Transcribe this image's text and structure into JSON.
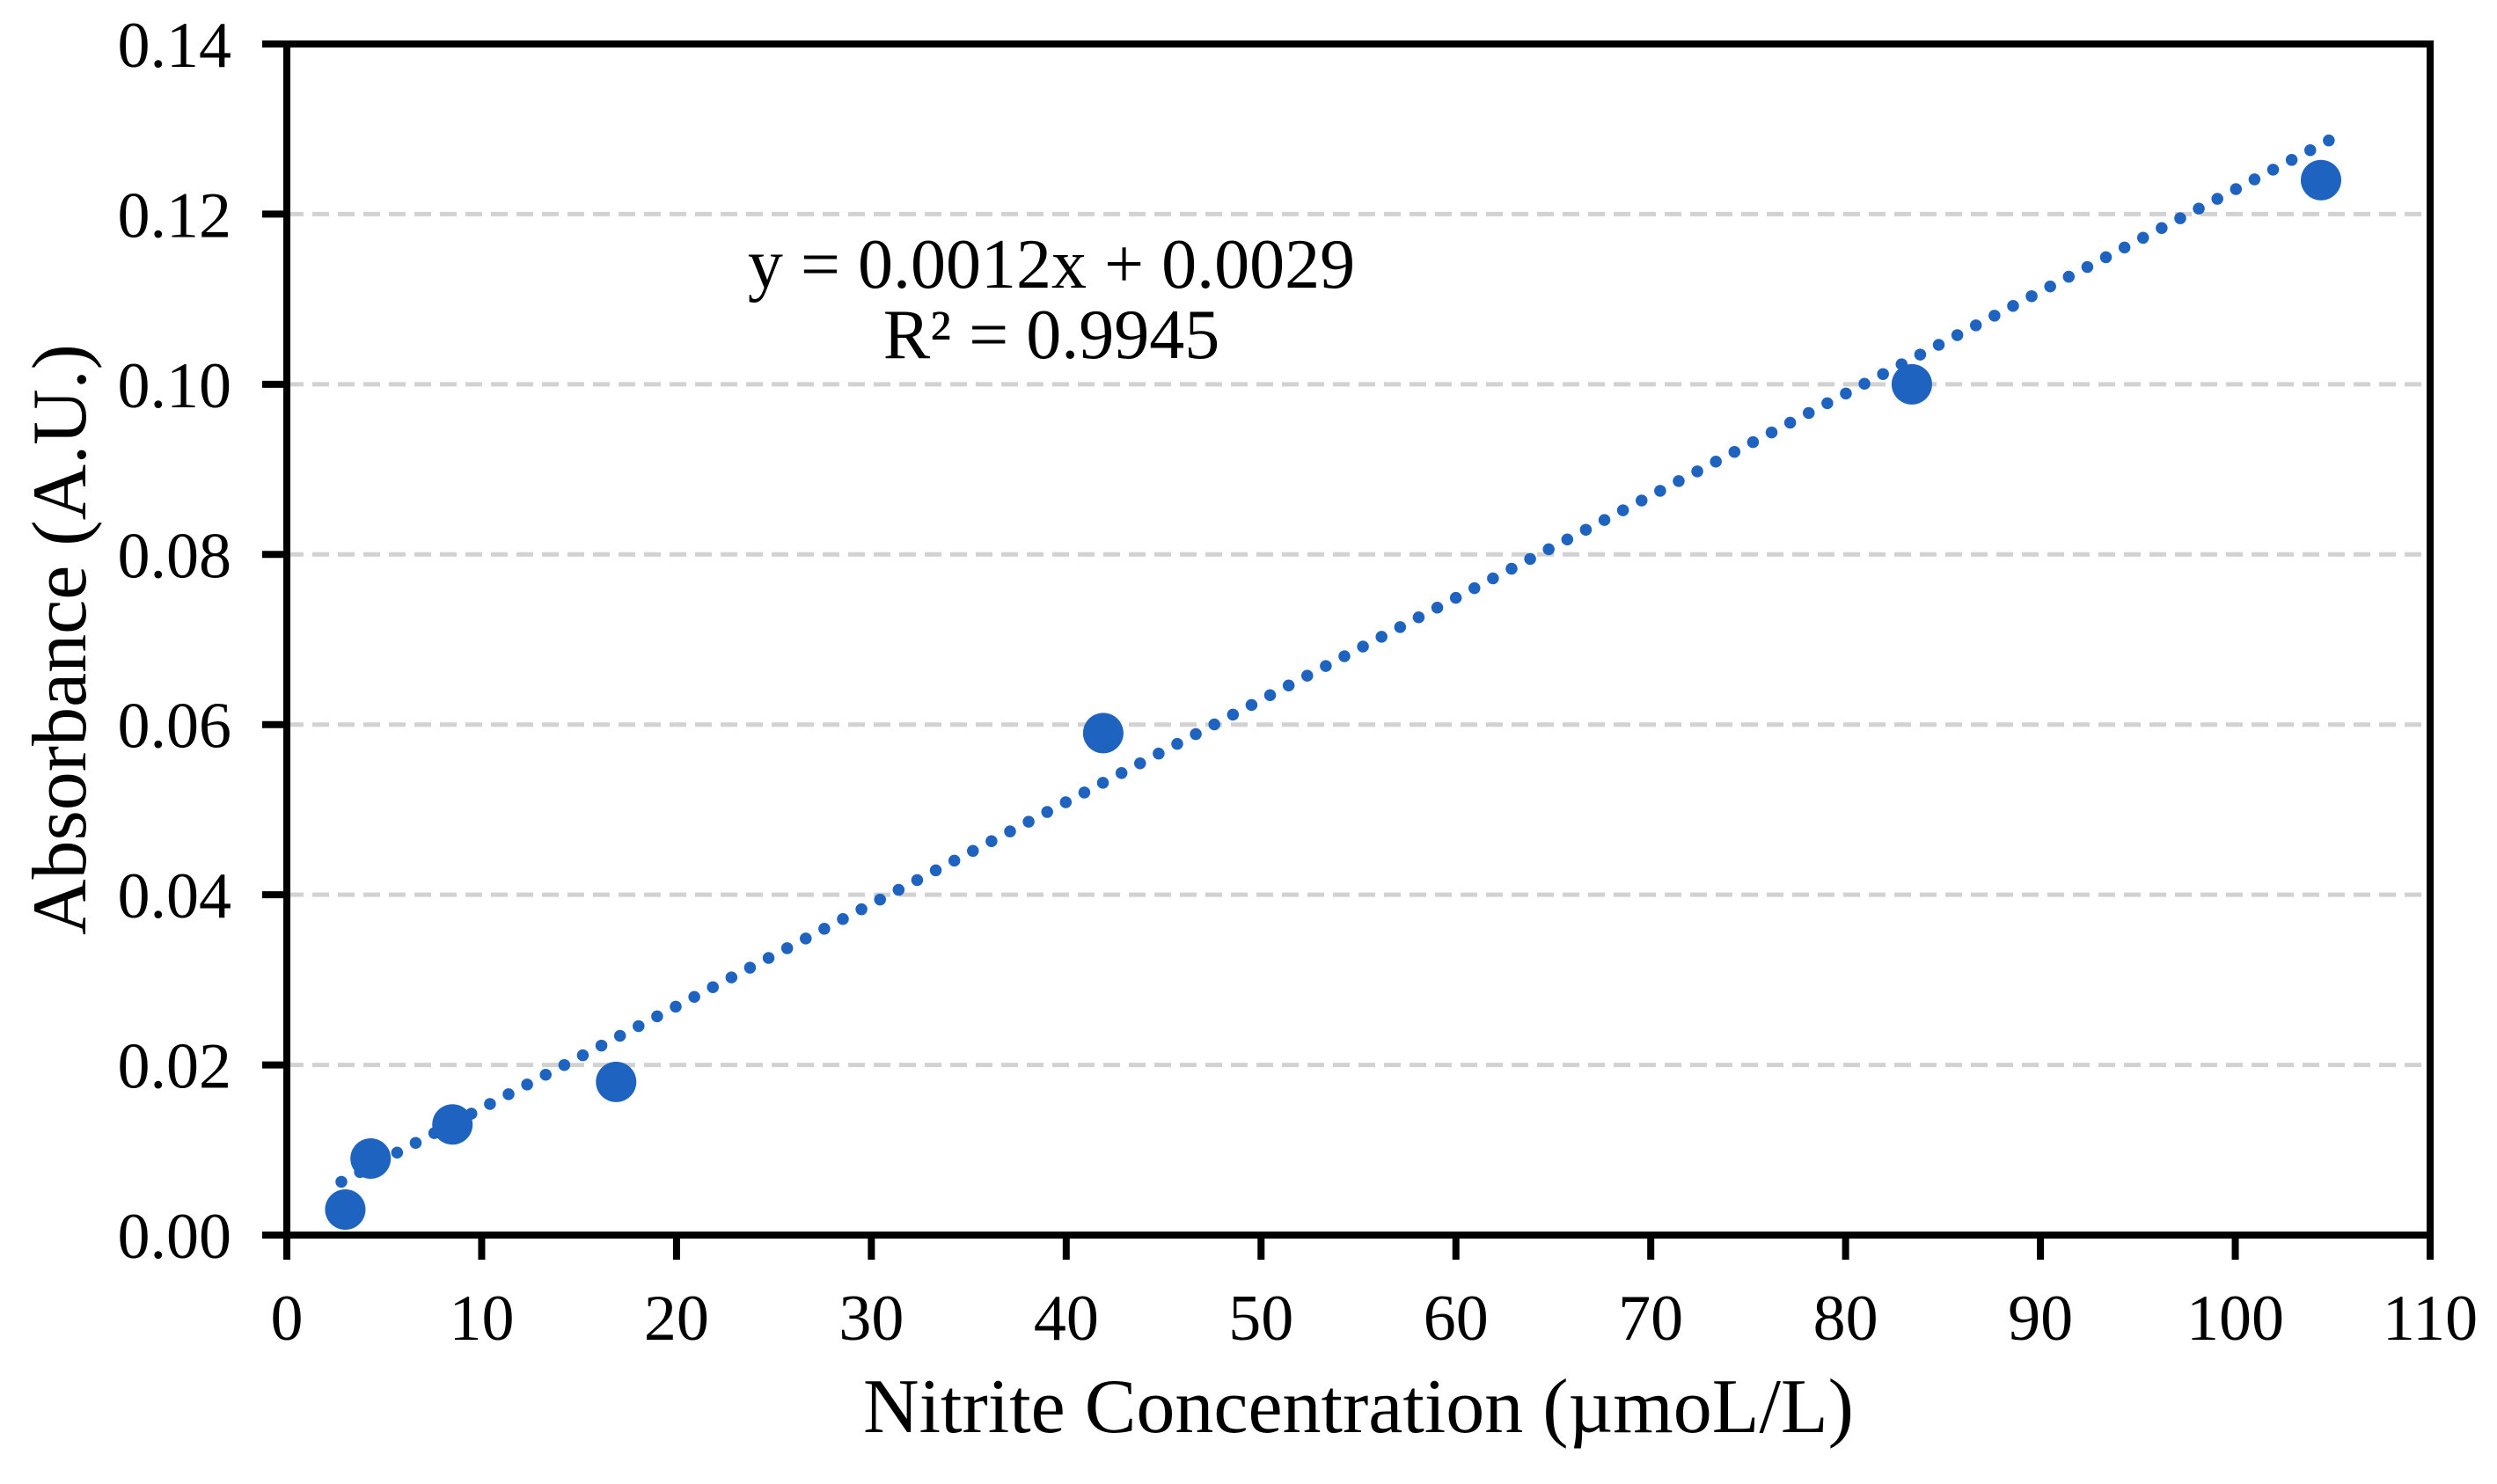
{
  "page": {
    "background_color": "#FFFFFF"
  },
  "chart_data": {
    "type": "scatter",
    "title": "",
    "xlabel": "Nitrite Concentration (µmoL/L)",
    "ylabel": "Absorbance (A.U.)",
    "xlim": [
      0,
      110
    ],
    "ylim": [
      0,
      0.14
    ],
    "x_ticks": [
      0,
      10,
      20,
      30,
      40,
      50,
      60,
      70,
      80,
      90,
      100,
      110
    ],
    "y_ticks": [
      "0.00",
      "0.02",
      "0.04",
      "0.06",
      "0.08",
      "0.10",
      "0.12",
      "0.14"
    ],
    "grid": {
      "horizontal": true,
      "vertical": false,
      "style": "dashed",
      "color": "#D2D2D2"
    },
    "legend_position": "none",
    "series": [
      {
        "name": "Nitrite calibration points",
        "marker": "circle",
        "color": "#1E63C0",
        "points": [
          {
            "x": 3.0,
            "y": 0.003
          },
          {
            "x": 4.3,
            "y": 0.009
          },
          {
            "x": 8.5,
            "y": 0.013
          },
          {
            "x": 16.9,
            "y": 0.018
          },
          {
            "x": 41.9,
            "y": 0.059
          },
          {
            "x": 83.4,
            "y": 0.1
          },
          {
            "x": 104.4,
            "y": 0.124
          }
        ]
      }
    ],
    "trendline": {
      "style": "dotted",
      "color": "#1E63C0",
      "slope": 0.0012,
      "intercept": 0.0029,
      "x_start": 2.8,
      "x_end": 104.8,
      "equation_label": "y = 0.0012x + 0.0029",
      "r_squared_label": "R² = 0.9945"
    },
    "axis_color": "#000000",
    "text_color": "#000000"
  }
}
